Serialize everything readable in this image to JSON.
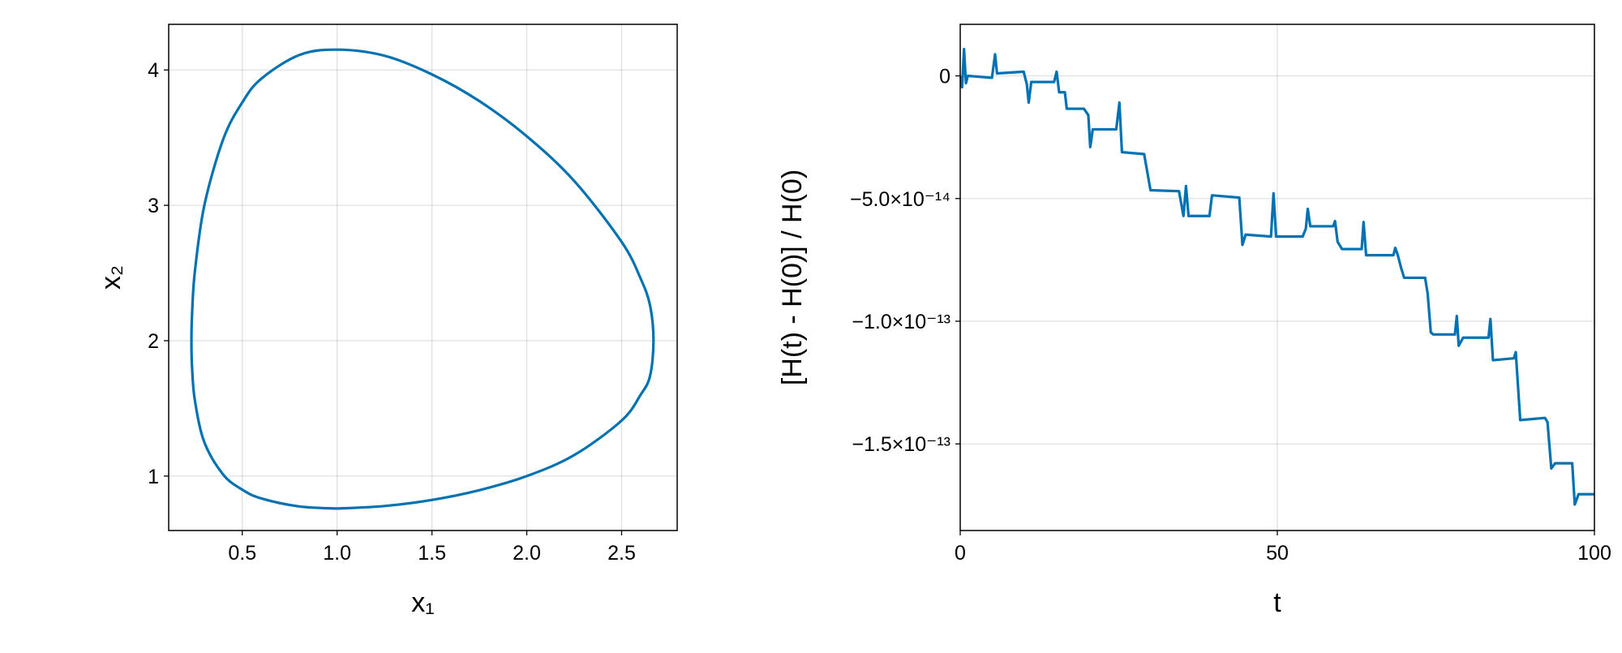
{
  "chart_data": [
    {
      "type": "line",
      "xlabel": "x₁",
      "ylabel": "x₂",
      "color": "#0072b2",
      "grid": true,
      "smooth": true,
      "xlim": [
        0.112,
        2.793
      ],
      "ylim": [
        0.598,
        4.337
      ],
      "xticks": [
        0.5,
        {
          "value": 1,
          "label": "1.0"
        },
        1.5,
        {
          "value": 2,
          "label": "2.0"
        },
        2.5
      ],
      "yticks": [
        1,
        2,
        3,
        4
      ],
      "x": [
        1.0,
        1.25,
        1.5,
        1.75,
        2.0,
        2.25,
        2.5,
        2.6,
        2.65,
        2.668,
        2.65,
        2.6,
        2.5,
        2.25,
        2.0,
        1.75,
        1.5,
        1.25,
        1.0,
        0.8,
        0.6,
        0.5,
        0.4,
        0.3,
        0.25,
        0.235,
        0.232,
        0.235,
        0.25,
        0.3,
        0.4,
        0.5,
        0.6,
        0.8,
        1.0
      ],
      "values": [
        0.76,
        0.779,
        0.824,
        0.896,
        1.0,
        1.155,
        1.41,
        1.6,
        1.74,
        2.0,
        2.26,
        2.46,
        2.73,
        3.18,
        3.51,
        3.77,
        3.967,
        4.105,
        4.15,
        4.11,
        3.935,
        3.76,
        3.49,
        3.0,
        2.51,
        2.19,
        2.0,
        1.81,
        1.56,
        1.25,
        1.01,
        0.9,
        0.835,
        0.776,
        0.76
      ]
    },
    {
      "type": "line",
      "xlabel": "t",
      "ylabel": "[H(t) - H(0)] / H(0)",
      "color": "#0072b2",
      "grid": true,
      "smooth": false,
      "xlim": [
        0,
        100
      ],
      "ylim": [
        -1.853e-13,
        2.1e-14
      ],
      "xticks": [
        0,
        50,
        100
      ],
      "yticks": [
        0,
        {
          "value": -5e-14,
          "label": "−5.0×10⁻¹⁴"
        },
        {
          "value": -1e-13,
          "label": "−1.0×10⁻¹³"
        },
        {
          "value": -1.5e-13,
          "label": "−1.5×10⁻¹³"
        }
      ],
      "x": [
        0,
        0.3,
        0.6,
        0.9,
        1.2,
        5,
        5.5,
        5.8,
        10,
        10.5,
        10.8,
        11.2,
        14.8,
        15.2,
        15.6,
        16.5,
        16.8,
        19.5,
        20.2,
        20.5,
        20.9,
        24.6,
        25.1,
        25.5,
        29,
        30,
        34.5,
        35.2,
        35.6,
        36,
        39.3,
        39.7,
        44,
        44.5,
        45,
        49,
        49.4,
        49.8,
        54,
        54.5,
        54.8,
        55.2,
        58.8,
        59.1,
        59.5,
        60.2,
        63.3,
        63.6,
        64,
        68.3,
        68.6,
        69,
        69.5,
        70,
        73.3,
        73.7,
        74.2,
        74.6,
        78,
        78.3,
        78.6,
        79.3,
        83.3,
        83.6,
        84,
        87.3,
        87.6,
        88.3,
        92.2,
        92.6,
        93.2,
        93.8,
        96.5,
        96.9,
        97.5,
        100
      ],
      "values": [
        0,
        -4.6e-15,
        1.09e-14,
        -3e-15,
        0,
        -8e-16,
        8.8e-15,
        1e-15,
        1.7e-15,
        -3.4e-15,
        -1.09e-14,
        -2.5e-15,
        -2.5e-15,
        1.7e-15,
        -6.7e-15,
        -6.7e-15,
        -1.34e-14,
        -1.34e-14,
        -1.6e-14,
        -2.9e-14,
        -2.18e-14,
        -2.18e-14,
        -1.09e-14,
        -3.11e-14,
        -3.19e-14,
        -4.66e-14,
        -4.7e-14,
        -5.71e-14,
        -4.49e-14,
        -5.71e-14,
        -5.71e-14,
        -4.87e-14,
        -4.96e-14,
        -6.89e-14,
        -6.47e-14,
        -6.55e-14,
        -4.79e-14,
        -6.55e-14,
        -6.55e-14,
        -6.22e-14,
        -5.42e-14,
        -6.13e-14,
        -6.13e-14,
        -5.92e-14,
        -6.76e-14,
        -7.06e-14,
        -7.06e-14,
        -5.96e-14,
        -7.31e-14,
        -7.31e-14,
        -7.01e-14,
        -7.31e-14,
        -7.81e-14,
        -8.23e-14,
        -8.23e-14,
        -8.86e-14,
        -1.046e-13,
        -1.054e-13,
        -1.054e-13,
        -9.79e-14,
        -1.1e-13,
        -1.067e-13,
        -1.067e-13,
        -9.91e-14,
        -1.159e-13,
        -1.151e-13,
        -1.126e-13,
        -1.403e-13,
        -1.394e-13,
        -1.411e-13,
        -1.6e-13,
        -1.579e-13,
        -1.579e-13,
        -1.747e-13,
        -1.705e-13,
        -1.705e-13
      ]
    }
  ]
}
